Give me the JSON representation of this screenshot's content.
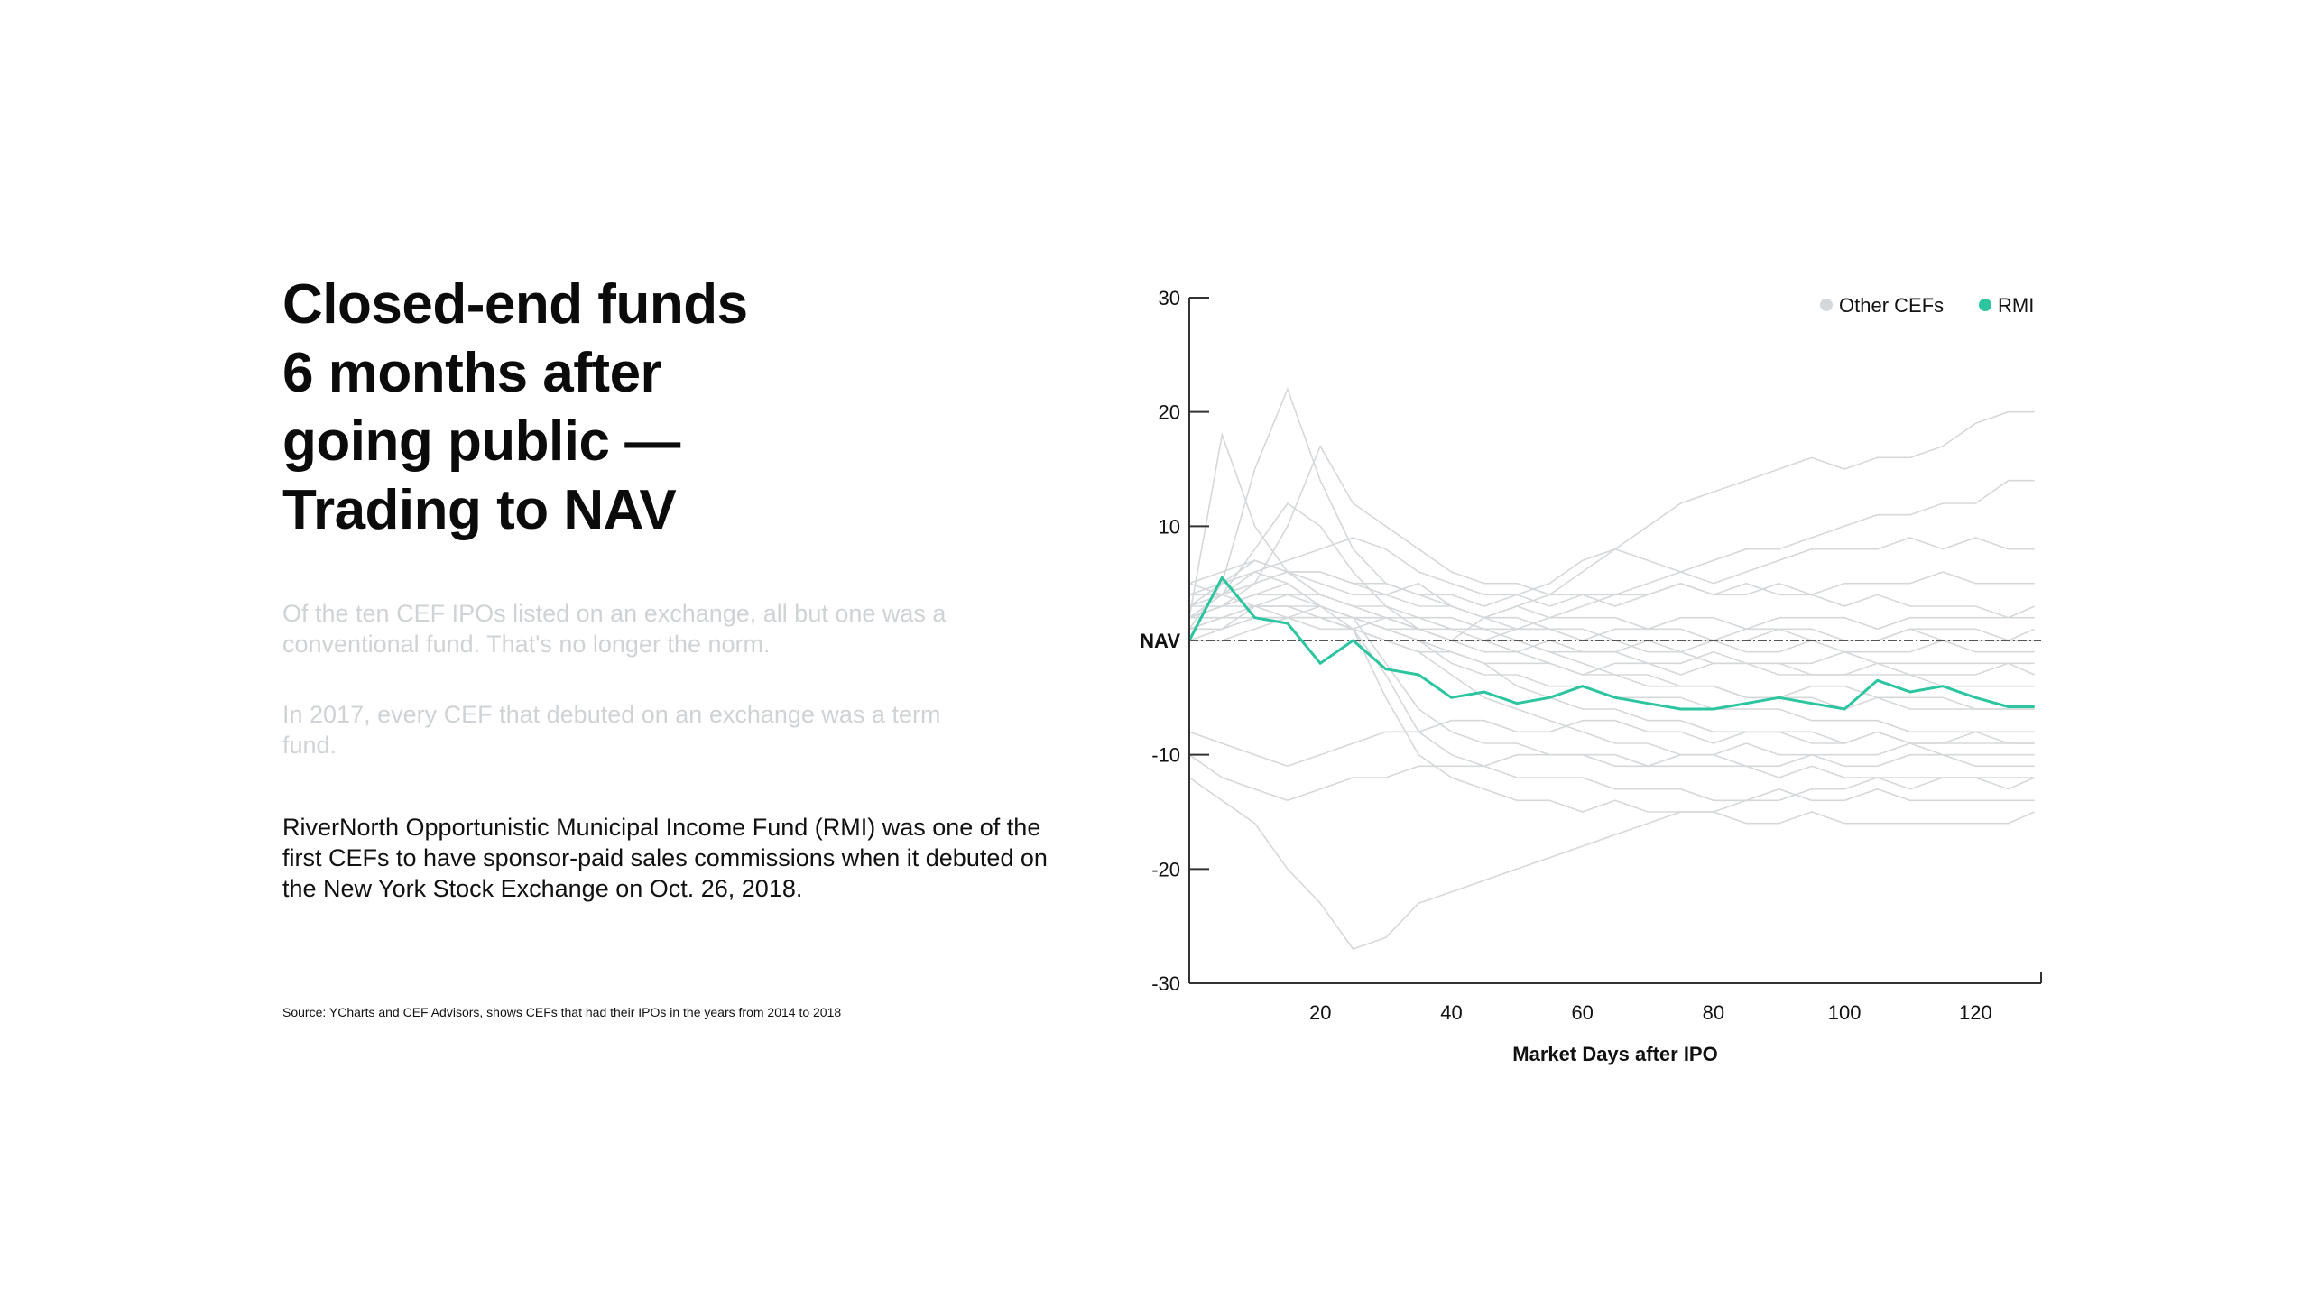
{
  "headline": {
    "line1": "Closed-end funds",
    "line2": "6 months after",
    "line3": "going public —",
    "line4": "Trading to NAV"
  },
  "paragraphs": {
    "p1": "Of the ten CEF IPOs listed on an exchange, all but one was a conventional fund. That's no longer the norm.",
    "p2": "In 2017, every CEF that debuted on an exchange was a term fund.",
    "p3": "RiverNorth Opportunistic Municipal Income Fund (RMI) was one of the first CEFs to have sponsor-paid sales commissions when it debuted on the New York Stock Exchange on Oct. 26, 2018."
  },
  "source": "Source: YCharts and CEF Advisors, shows CEFs that had their IPOs in the years from 2014 to 2018",
  "colors": {
    "rmi": "#2cc5a0",
    "other": "#d5d8da",
    "faded_text": "#d0d3d5",
    "axis": "#333333",
    "nav_line": "#555555"
  },
  "chart_data": {
    "type": "line",
    "xlabel": "Market Days after IPO",
    "ylabel": "",
    "xlim": [
      0,
      130
    ],
    "ylim": [
      -30,
      30
    ],
    "x_ticks": [
      20,
      40,
      60,
      80,
      100,
      120
    ],
    "y_ticks": [
      {
        "value": 30,
        "label": "30"
      },
      {
        "value": 20,
        "label": "20"
      },
      {
        "value": 10,
        "label": "10"
      },
      {
        "value": 0,
        "label": "NAV"
      },
      {
        "value": -10,
        "label": "-10"
      },
      {
        "value": -20,
        "label": "-20"
      },
      {
        "value": -30,
        "label": "-30"
      }
    ],
    "reference_line": {
      "y": 0,
      "label": "NAV"
    },
    "legend": {
      "position": "top-right",
      "items": [
        "Other CEFs",
        "RMI"
      ]
    },
    "x": [
      0,
      5,
      10,
      15,
      20,
      25,
      30,
      35,
      40,
      45,
      50,
      55,
      60,
      65,
      70,
      75,
      80,
      85,
      90,
      95,
      100,
      105,
      110,
      115,
      120,
      125,
      129
    ],
    "highlight_series": {
      "name": "RMI",
      "values": [
        0,
        5.5,
        2,
        1.5,
        -2,
        0,
        -2.5,
        -3,
        -5,
        -4.5,
        -5.5,
        -5,
        -4,
        -5,
        -5.5,
        -6,
        -6,
        -5.5,
        -5,
        -5.5,
        -6,
        -3.5,
        -4.5,
        -4,
        -5,
        -5.8,
        -5.8
      ]
    },
    "series": [
      {
        "values": [
          2,
          18,
          10,
          6,
          4,
          3,
          2,
          1,
          0,
          -1,
          -1,
          -2,
          -3,
          -3,
          -4,
          -4,
          -4,
          -5,
          -5,
          -4,
          -4,
          -5,
          -5,
          -5,
          -6,
          -6,
          -6
        ]
      },
      {
        "values": [
          1,
          5,
          15,
          22,
          14,
          8,
          5,
          4,
          3,
          2,
          2,
          1,
          1,
          0,
          0,
          0,
          0,
          0,
          1,
          0,
          0,
          0,
          1,
          0,
          0,
          0,
          0
        ]
      },
      {
        "values": [
          3,
          4,
          8,
          12,
          10,
          6,
          3,
          1,
          0,
          2,
          3,
          4,
          6,
          8,
          10,
          12,
          13,
          14,
          15,
          16,
          15,
          16,
          16,
          17,
          19,
          20,
          20
        ]
      },
      {
        "values": [
          2,
          3,
          5,
          10,
          17,
          12,
          10,
          8,
          6,
          5,
          5,
          4,
          4,
          4,
          5,
          6,
          7,
          8,
          8,
          9,
          10,
          11,
          11,
          12,
          12,
          14,
          14
        ]
      },
      {
        "values": [
          4,
          5,
          6,
          7,
          8,
          9,
          8,
          6,
          5,
          4,
          4,
          5,
          7,
          8,
          7,
          6,
          5,
          6,
          7,
          8,
          8,
          8,
          9,
          8,
          9,
          8,
          8
        ]
      },
      {
        "values": [
          3,
          4,
          5,
          6,
          6,
          5,
          5,
          4,
          4,
          3,
          4,
          3,
          4,
          3,
          4,
          5,
          4,
          4,
          5,
          4,
          5,
          5,
          5,
          6,
          5,
          5,
          5
        ]
      },
      {
        "values": [
          5,
          4,
          5,
          6,
          5,
          4,
          4,
          5,
          3,
          2,
          3,
          2,
          2,
          2,
          1,
          2,
          2,
          1,
          2,
          2,
          2,
          1,
          2,
          2,
          2,
          2,
          2
        ]
      },
      {
        "values": [
          2,
          3,
          4,
          4,
          4,
          3,
          3,
          2,
          2,
          1,
          1,
          1,
          0,
          1,
          1,
          1,
          0,
          1,
          1,
          1,
          0,
          0,
          1,
          1,
          1,
          0,
          1
        ]
      },
      {
        "values": [
          3,
          3,
          3,
          2,
          3,
          2,
          1,
          1,
          0,
          0,
          -1,
          0,
          -1,
          -1,
          0,
          -1,
          0,
          -1,
          -1,
          0,
          -1,
          -1,
          -1,
          0,
          -1,
          -1,
          -1
        ]
      },
      {
        "values": [
          1,
          2,
          2,
          2,
          1,
          1,
          0,
          -1,
          -1,
          -2,
          -2,
          -2,
          -3,
          -2,
          -2,
          -3,
          -2,
          -2,
          -3,
          -3,
          -3,
          -2,
          -3,
          -3,
          -3,
          -2,
          -3
        ]
      },
      {
        "values": [
          0,
          1,
          3,
          4,
          3,
          2,
          1,
          0,
          -2,
          -3,
          -3,
          -4,
          -4,
          -5,
          -5,
          -5,
          -6,
          -6,
          -6,
          -7,
          -7,
          -7,
          -8,
          -8,
          -8,
          -8,
          -8
        ]
      },
      {
        "values": [
          2,
          4,
          6,
          5,
          3,
          2,
          -2,
          -6,
          -8,
          -9,
          -9,
          -10,
          -10,
          -10,
          -11,
          -11,
          -11,
          -11,
          -12,
          -11,
          -12,
          -12,
          -12,
          -12,
          -12,
          -12,
          -12
        ]
      },
      {
        "values": [
          1,
          2,
          3,
          3,
          2,
          1,
          -3,
          -8,
          -10,
          -11,
          -12,
          -12,
          -12,
          -13,
          -13,
          -13,
          -14,
          -14,
          -13,
          -14,
          -14,
          -13,
          -14,
          -14,
          -14,
          -14,
          -14
        ]
      },
      {
        "values": [
          2,
          3,
          4,
          5,
          3,
          1,
          -5,
          -10,
          -12,
          -13,
          -14,
          -14,
          -15,
          -14,
          -15,
          -15,
          -15,
          -16,
          -16,
          -15,
          -16,
          -16,
          -16,
          -16,
          -16,
          -16,
          -15
        ]
      },
      {
        "values": [
          -8,
          -9,
          -10,
          -11,
          -10,
          -9,
          -8,
          -8,
          -7,
          -7,
          -8,
          -8,
          -7,
          -7,
          -8,
          -8,
          -9,
          -8,
          -8,
          -9,
          -9,
          -8,
          -9,
          -9,
          -8,
          -9,
          -9
        ]
      },
      {
        "values": [
          -10,
          -12,
          -13,
          -14,
          -13,
          -12,
          -12,
          -11,
          -11,
          -11,
          -10,
          -10,
          -10,
          -11,
          -11,
          -10,
          -10,
          -11,
          -11,
          -10,
          -11,
          -11,
          -10,
          -10,
          -11,
          -11,
          -11
        ]
      },
      {
        "values": [
          -12,
          -14,
          -16,
          -20,
          -23,
          -27,
          -26,
          -23,
          -22,
          -21,
          -20,
          -19,
          -18,
          -17,
          -16,
          -15,
          -15,
          -14,
          -14,
          -13,
          -13,
          -12,
          -13,
          -12,
          -12,
          -13,
          -12
        ]
      },
      {
        "values": [
          4,
          4,
          3,
          3,
          2,
          2,
          2,
          1,
          1,
          0,
          0,
          -1,
          -1,
          -1,
          -2,
          -2,
          -1,
          -2,
          -2,
          -2,
          -1,
          -2,
          -2,
          -2,
          -2,
          -2,
          -2
        ]
      },
      {
        "values": [
          3,
          5,
          7,
          6,
          4,
          3,
          2,
          2,
          1,
          1,
          0,
          -1,
          -2,
          -3,
          -3,
          -4,
          -4,
          -5,
          -5,
          -5,
          -6,
          -5,
          -6,
          -6,
          -6,
          -6,
          -6
        ]
      },
      {
        "values": [
          5,
          6,
          7,
          6,
          6,
          5,
          4,
          3,
          3,
          2,
          1,
          1,
          0,
          0,
          -1,
          -1,
          -2,
          -2,
          -2,
          -3,
          -3,
          -3,
          -3,
          -4,
          -4,
          -4,
          -4
        ]
      },
      {
        "values": [
          1,
          1,
          2,
          2,
          2,
          1,
          0,
          -1,
          -3,
          -5,
          -6,
          -7,
          -8,
          -9,
          -9,
          -10,
          -10,
          -9,
          -10,
          -10,
          -10,
          -10,
          -9,
          -10,
          -10,
          -10,
          -10
        ]
      },
      {
        "values": [
          2,
          2,
          3,
          3,
          3,
          2,
          1,
          0,
          -1,
          -2,
          -4,
          -5,
          -6,
          -6,
          -7,
          -7,
          -8,
          -8,
          -8,
          -8,
          -9,
          -8,
          -9,
          -9,
          -9,
          -9,
          -9
        ]
      },
      {
        "values": [
          0,
          0,
          1,
          2,
          2,
          1,
          2,
          1,
          0,
          0,
          1,
          2,
          3,
          4,
          4,
          5,
          4,
          5,
          4,
          4,
          3,
          4,
          3,
          3,
          3,
          2,
          3
        ]
      }
    ]
  }
}
